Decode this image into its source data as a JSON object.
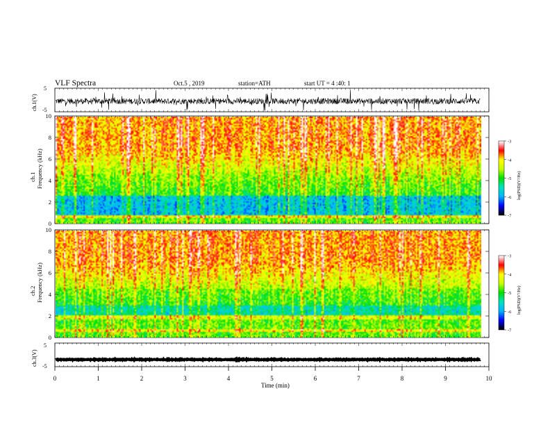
{
  "header": {
    "title": "VLF Spectra",
    "date": "Oct.5 , 2019",
    "station": "station=ATH",
    "start_ut": "start UT = 4 :40: 1"
  },
  "colors": {
    "background": "#ffffff",
    "trace": "#000000",
    "colormap": [
      "#000000",
      "#0000ff",
      "#00b4ff",
      "#00e0c0",
      "#00e000",
      "#c8ff00",
      "#ffff00",
      "#ff0000",
      "#ffffff"
    ]
  },
  "chart_data": [
    {
      "id": "ch1-waveform",
      "type": "line",
      "ylabel": "ch.1(V)",
      "ylim": [
        -5,
        5
      ],
      "yticks": [
        "5",
        "-5"
      ],
      "xlim": [
        0,
        10
      ],
      "data_xrange": [
        0,
        9.8
      ],
      "series": [
        {
          "values_summary": "noisy broadband trace centred near -0.5 V, spikes reaching about +4 V and -4 V"
        }
      ]
    },
    {
      "id": "ch1-spectrogram",
      "type": "heatmap",
      "ylabel": "ch.1\nFrequency (kHz)",
      "ylim": [
        0,
        10
      ],
      "yticks": [
        "0",
        "2",
        "4",
        "6",
        "8",
        "10"
      ],
      "xlim": [
        0,
        10
      ],
      "colorbar": {
        "label": "log(PSD)(V²/Hz)",
        "range": [
          -7,
          -3
        ],
        "ticks": [
          "-3",
          "-4",
          "-5",
          "-6",
          "-7"
        ]
      },
      "description_values": {
        "low_band_kHz": [
          0.5,
          2.5
        ],
        "low_band_logpsd": -6,
        "high_band_kHz": [
          7,
          10
        ],
        "high_band_logpsd": -4
      }
    },
    {
      "id": "ch2-spectrogram",
      "type": "heatmap",
      "ylabel": "ch.2\nFrequency (kHz)",
      "ylim": [
        0,
        10
      ],
      "yticks": [
        "0",
        "2",
        "4",
        "6",
        "8",
        "10"
      ],
      "xlim": [
        0,
        10
      ],
      "colorbar": {
        "label": "log(PSD)(V²/Hz)",
        "range": [
          -7,
          -3
        ],
        "ticks": [
          "-3",
          "-4",
          "-5",
          "-6",
          "-7"
        ]
      },
      "description_values": {
        "low_band_kHz": [
          2,
          3
        ],
        "low_band_logpsd": -6,
        "high_band_kHz": [
          7,
          10
        ],
        "high_band_logpsd": -4.2
      }
    },
    {
      "id": "ch3-waveform",
      "type": "line",
      "ylabel": "ch.3(V)",
      "ylim": [
        -5,
        5
      ],
      "yticks": [
        "5",
        "-5"
      ],
      "xlim": [
        0,
        10
      ],
      "xlabel": "Time (min)",
      "xticks": [
        "0",
        "1",
        "2",
        "3",
        "4",
        "5",
        "6",
        "7",
        "8",
        "9",
        "10"
      ],
      "data_xrange": [
        0,
        9.8
      ],
      "series": [
        {
          "values_summary": "flat thick trace at about -2 V"
        }
      ]
    }
  ]
}
